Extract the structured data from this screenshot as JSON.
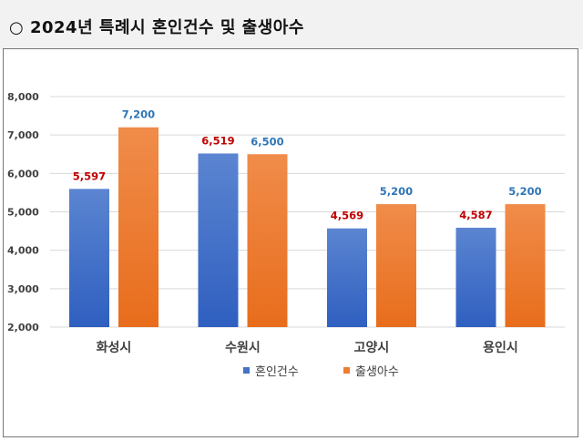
{
  "title": "○ 2024년 특례시 혼인건수 및 출생아수",
  "chart_data": {
    "type": "bar",
    "title": "",
    "xlabel": "",
    "ylabel": "",
    "categories": [
      "화성시",
      "수원시",
      "고양시",
      "용인시"
    ],
    "series": [
      {
        "name": "혼인건수",
        "values": [
          5597,
          6519,
          4569,
          4587
        ],
        "color": "#4472c4",
        "label_color": "#c00000"
      },
      {
        "name": "출생아수",
        "values": [
          7200,
          6500,
          5200,
          5200
        ],
        "color": "#ed7d31",
        "label_color": "#2e75b6"
      }
    ],
    "ylim": [
      2000,
      8000
    ],
    "yticks": [
      "2,000",
      "3,000",
      "4,000",
      "5,000",
      "6,000",
      "7,000",
      "8,000"
    ],
    "grid": true,
    "legend": "bottom"
  }
}
